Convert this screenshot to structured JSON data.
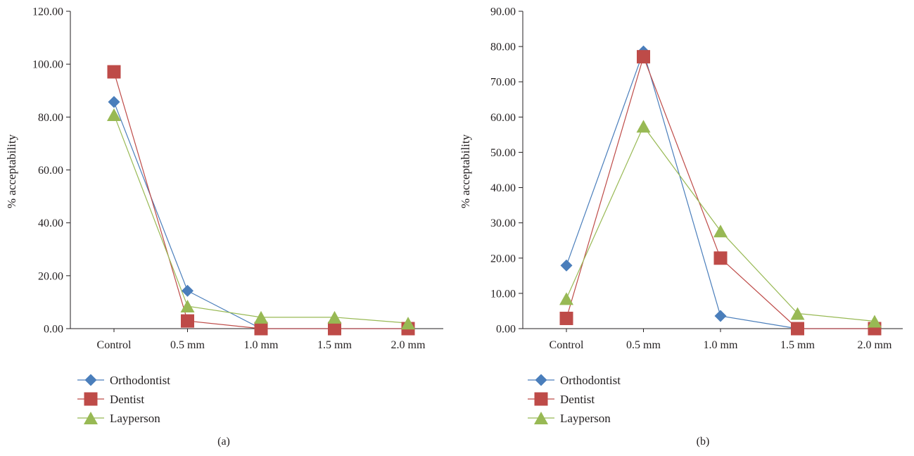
{
  "colors": {
    "Orthodontist": "#4a7ebb",
    "Dentist": "#be4b48",
    "Layperson": "#98b954",
    "axis": "#231f20"
  },
  "chart_data": [
    {
      "type": "line",
      "caption": "(a)",
      "ylabel": "% acceptability",
      "ylim": [
        0,
        120
      ],
      "yticks": [
        "0.00",
        "20.00",
        "40.00",
        "60.00",
        "80.00",
        "100.00",
        "120.00"
      ],
      "categories": [
        "Control",
        "0.5 mm",
        "1.0 mm",
        "1.5 mm",
        "2.0 mm"
      ],
      "series": [
        {
          "name": "Orthodontist",
          "marker": "diamond",
          "values": [
            85.7,
            14.3,
            0,
            0,
            0
          ]
        },
        {
          "name": "Dentist",
          "marker": "square",
          "values": [
            97.1,
            2.9,
            0,
            0,
            0
          ]
        },
        {
          "name": "Layperson",
          "marker": "triangle",
          "values": [
            80.9,
            8.5,
            4.3,
            4.3,
            2.1
          ]
        }
      ]
    },
    {
      "type": "line",
      "caption": "(b)",
      "ylabel": "% acceptability",
      "ylim": [
        0,
        90
      ],
      "yticks": [
        "0.00",
        "10.00",
        "20.00",
        "30.00",
        "40.00",
        "50.00",
        "60.00",
        "70.00",
        "80.00",
        "90.00"
      ],
      "categories": [
        "Control",
        "0.5 mm",
        "1.0 mm",
        "1.5 mm",
        "2.0 mm"
      ],
      "series": [
        {
          "name": "Orthodontist",
          "marker": "diamond",
          "values": [
            17.9,
            78.6,
            3.6,
            0,
            0
          ]
        },
        {
          "name": "Dentist",
          "marker": "square",
          "values": [
            2.9,
            77.1,
            20.0,
            0,
            0
          ]
        },
        {
          "name": "Layperson",
          "marker": "triangle",
          "values": [
            8.5,
            57.4,
            27.7,
            4.3,
            2.1
          ]
        }
      ]
    }
  ]
}
